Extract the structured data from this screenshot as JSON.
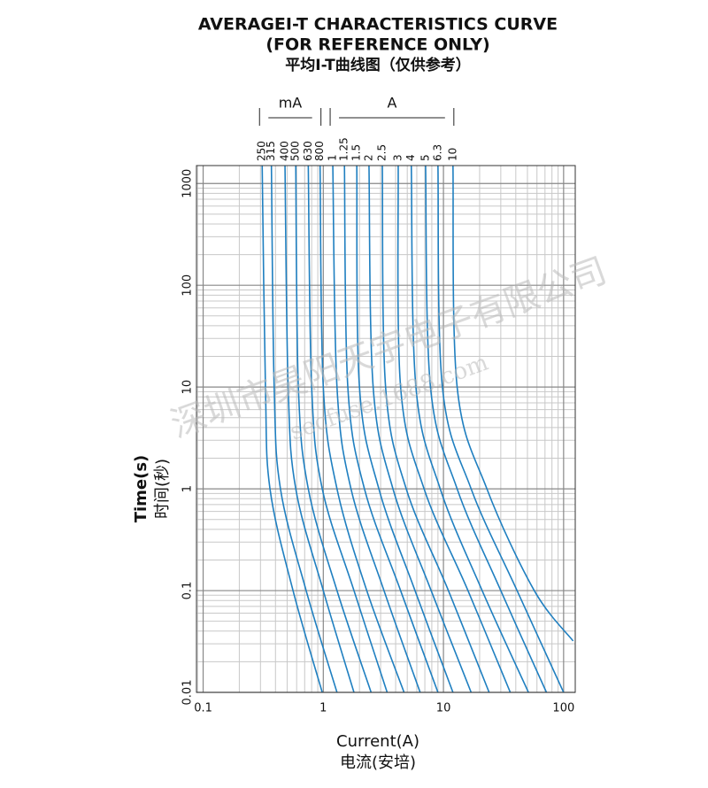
{
  "chart_data": {
    "type": "line",
    "title": "AVERAGEI-T CHARACTERISTICS CURVE",
    "subtitle": "(FOR REFERENCE ONLY)",
    "subtitle_cn": "平均I-T曲线图（仅供参考）",
    "x_label": "Current(A)",
    "x_label_cn": "电流(安培)",
    "y_label": "Time(s)",
    "y_label_cn": "时间(秒)",
    "unit_groups": [
      "mA",
      "A"
    ],
    "watermarks": [
      "深圳市昊阳天宇电子有限公司",
      "secfuse.1688.com"
    ],
    "log_x": true,
    "log_y": true,
    "grid": true,
    "xlim": [
      0.088,
      125
    ],
    "xticks": [
      0.1,
      1,
      10,
      100
    ],
    "ylim": [
      0.01,
      1500
    ],
    "yticks": [
      0.01,
      0.1,
      1,
      10,
      100,
      1000
    ],
    "series": [
      {
        "name": "250",
        "color": "#1f7fc0",
        "x": [
          0.31,
          0.33,
          0.36,
          0.56,
          0.98
        ],
        "values": [
          1500,
          10,
          1,
          0.1,
          0.01
        ]
      },
      {
        "name": "315",
        "color": "#1f7fc0",
        "x": [
          0.37,
          0.39,
          0.44,
          0.72,
          1.3
        ],
        "values": [
          1500,
          10,
          1,
          0.1,
          0.01
        ]
      },
      {
        "name": "400",
        "color": "#1f7fc0",
        "x": [
          0.48,
          0.51,
          0.59,
          1.0,
          1.8
        ],
        "values": [
          1500,
          10,
          1,
          0.1,
          0.01
        ]
      },
      {
        "name": "500",
        "color": "#1f7fc0",
        "x": [
          0.59,
          0.62,
          0.75,
          1.3,
          2.5
        ],
        "values": [
          1500,
          10,
          1,
          0.1,
          0.01
        ]
      },
      {
        "name": "630",
        "color": "#1f7fc0",
        "x": [
          0.75,
          0.8,
          0.98,
          1.8,
          3.4
        ],
        "values": [
          1500,
          10,
          1,
          0.1,
          0.01
        ]
      },
      {
        "name": "800",
        "color": "#1f7fc0",
        "x": [
          0.94,
          1.0,
          1.3,
          2.3,
          4.7
        ],
        "values": [
          1500,
          10,
          1,
          0.1,
          0.01
        ]
      },
      {
        "name": "1",
        "color": "#1f7fc0",
        "x": [
          1.2,
          1.3,
          1.7,
          3.2,
          6.4
        ],
        "values": [
          1500,
          10,
          1,
          0.1,
          0.01
        ]
      },
      {
        "name": "1.25",
        "color": "#1f7fc0",
        "x": [
          1.5,
          1.6,
          2.2,
          4.4,
          9.0
        ],
        "values": [
          1500,
          10,
          1,
          0.1,
          0.01
        ]
      },
      {
        "name": "1.5",
        "color": "#1f7fc0",
        "x": [
          1.9,
          2.0,
          2.9,
          5.8,
          12
        ],
        "values": [
          1500,
          10,
          1,
          0.1,
          0.01
        ]
      },
      {
        "name": "2",
        "color": "#1f7fc0",
        "x": [
          2.4,
          2.6,
          3.8,
          7.9,
          17
        ],
        "values": [
          1500,
          10,
          1,
          0.1,
          0.01
        ]
      },
      {
        "name": "2.5",
        "color": "#1f7fc0",
        "x": [
          3.1,
          3.3,
          4.9,
          11,
          24
        ],
        "values": [
          1500,
          10,
          1,
          0.1,
          0.01
        ]
      },
      {
        "name": "3",
        "color": "#1f7fc0",
        "x": [
          4.2,
          4.4,
          6.9,
          16,
          36
        ],
        "values": [
          1500,
          10,
          1,
          0.1,
          0.01
        ]
      },
      {
        "name": "4",
        "color": "#1f7fc0",
        "x": [
          5.4,
          5.9,
          9.4,
          21,
          51
        ],
        "values": [
          1500,
          10,
          1,
          0.1,
          0.01
        ]
      },
      {
        "name": "5",
        "color": "#1f7fc0",
        "x": [
          7.1,
          7.8,
          13,
          30,
          72
        ],
        "values": [
          1500,
          10,
          1,
          0.1,
          0.01
        ]
      },
      {
        "name": "6.3",
        "color": "#1f7fc0",
        "x": [
          9.0,
          9.8,
          17,
          41,
          100
        ],
        "values": [
          1500,
          10,
          1,
          0.1,
          0.01
        ]
      },
      {
        "name": "10",
        "color": "#1f7fc0",
        "x": [
          12,
          13,
          23,
          57,
          120
        ],
        "values": [
          1500,
          10,
          1,
          0.1,
          0.032
        ]
      }
    ]
  }
}
